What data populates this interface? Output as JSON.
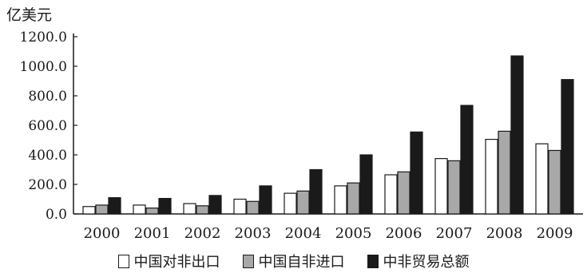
{
  "chart_data": {
    "type": "bar",
    "ylabel": "亿美元",
    "categories": [
      "2000",
      "2001",
      "2002",
      "2003",
      "2004",
      "2005",
      "2006",
      "2007",
      "2008",
      "2009"
    ],
    "series": [
      {
        "name": "中国对非出口",
        "color": "#ffffff",
        "values": [
          50,
          60,
          70,
          100,
          140,
          190,
          265,
          375,
          505,
          475
        ]
      },
      {
        "name": "中国自非进口",
        "color": "#a8a8a8",
        "values": [
          60,
          40,
          55,
          85,
          155,
          210,
          285,
          360,
          560,
          430
        ]
      },
      {
        "name": "中非贸易总额",
        "color": "#1a1a1a",
        "values": [
          110,
          105,
          125,
          190,
          300,
          400,
          555,
          735,
          1070,
          910
        ]
      }
    ],
    "yticks": [
      "0.0",
      "200.0",
      "400.0",
      "600.0",
      "800.0",
      "1000.0",
      "1200.0"
    ],
    "ylim": [
      0,
      1200
    ],
    "grid": false,
    "legend_position": "bottom"
  }
}
